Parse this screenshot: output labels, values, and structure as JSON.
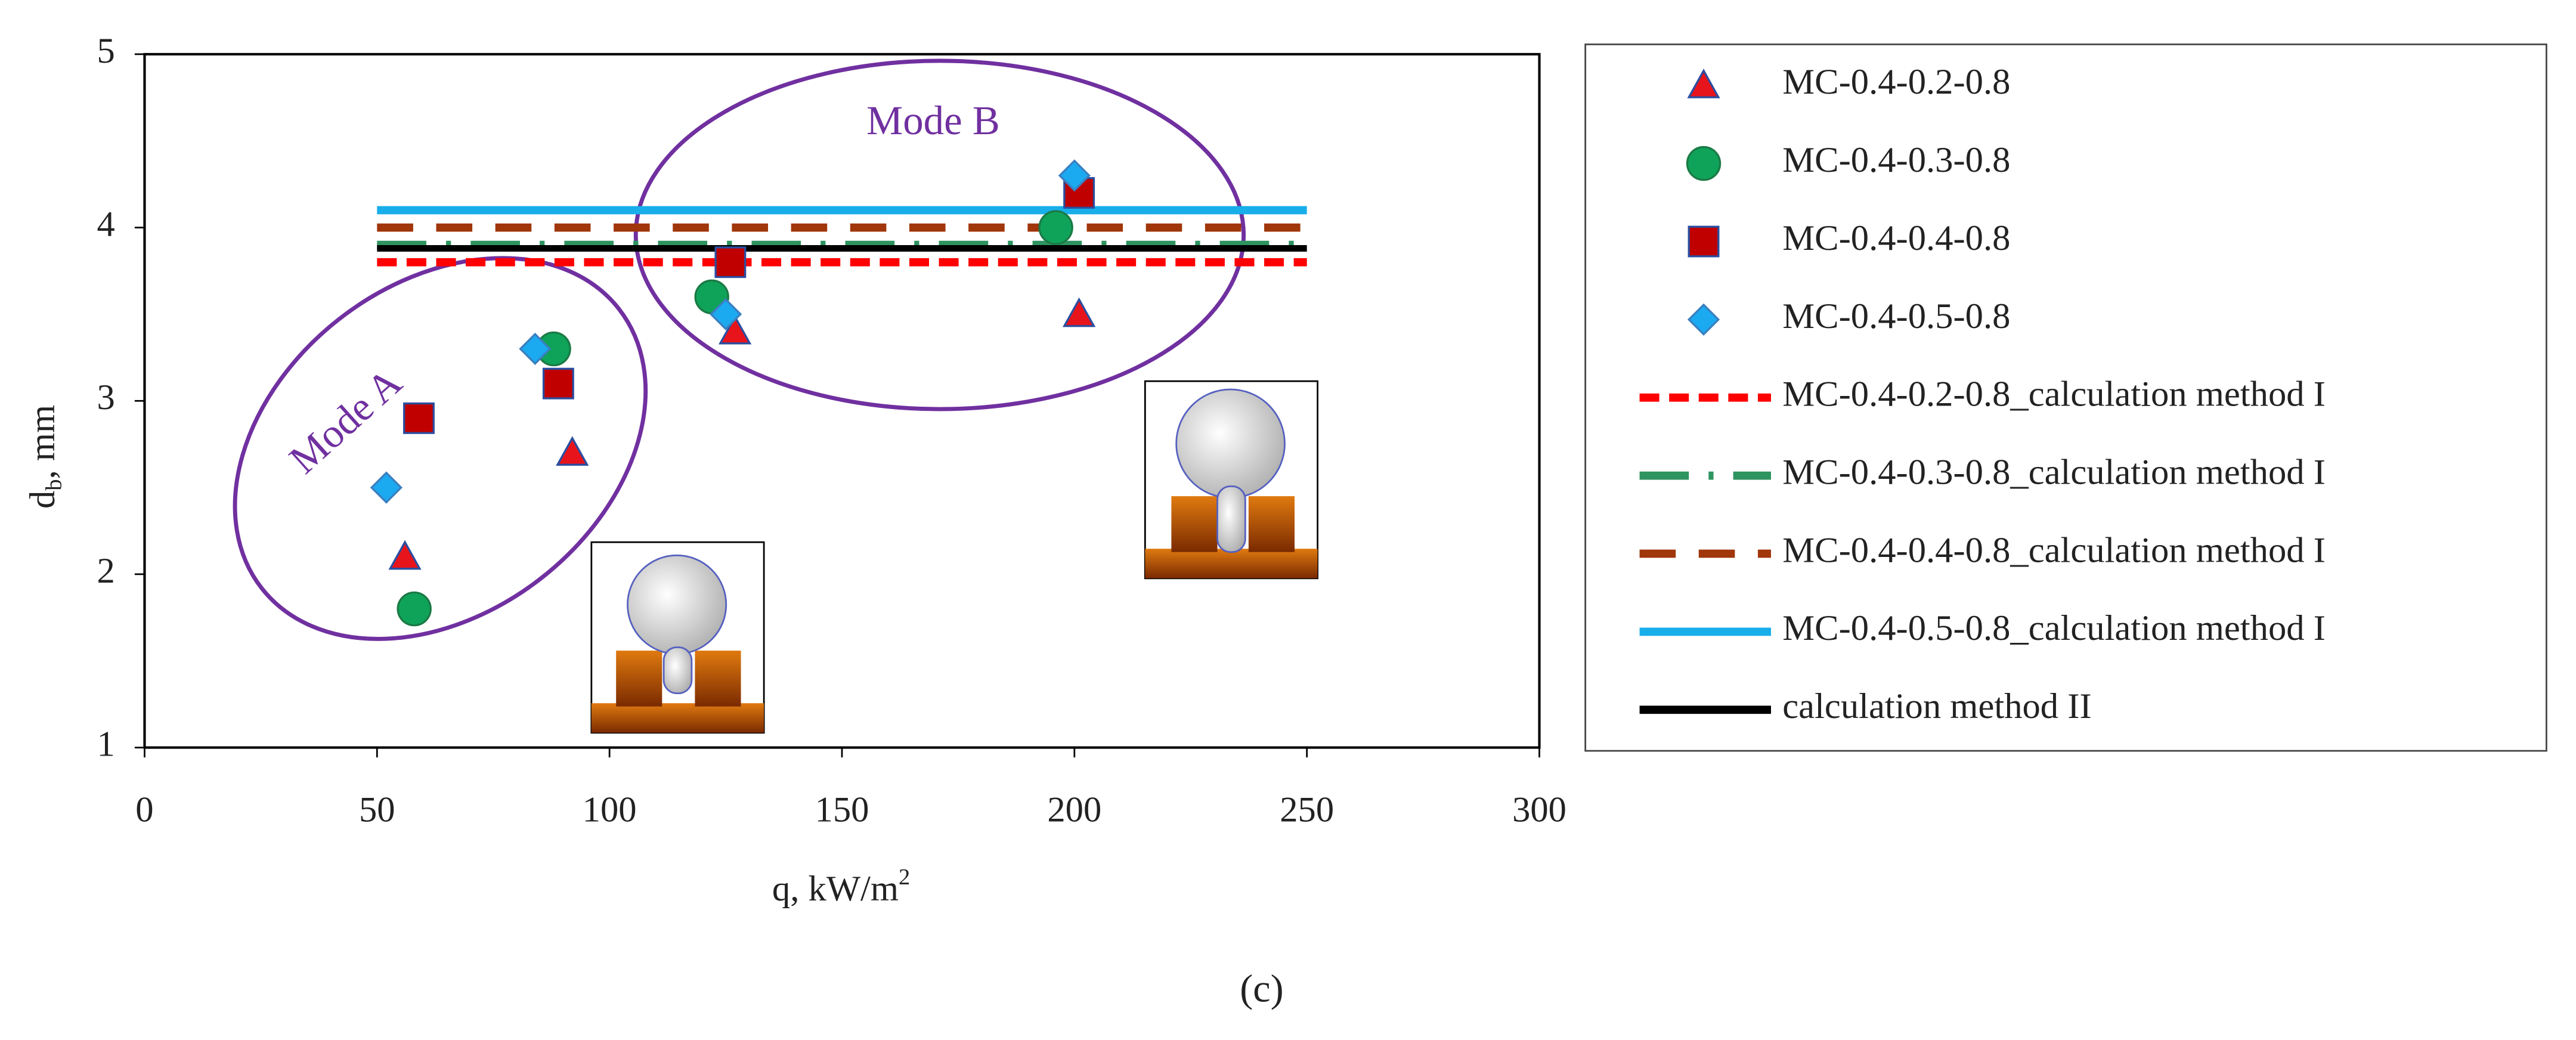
{
  "chart_data": {
    "type": "scatter",
    "xlabel": [
      "q, kW/m",
      "2"
    ],
    "ylabel": [
      "d",
      "b",
      ", mm"
    ],
    "annotations": [
      "Mode A",
      "Mode B"
    ],
    "caption": "(c)",
    "xlim": [
      0,
      300
    ],
    "xticks": [
      0,
      50,
      100,
      150,
      200,
      250,
      300
    ],
    "ylim": [
      1,
      5
    ],
    "yticks": [
      1,
      2,
      3,
      4,
      5
    ],
    "series": [
      {
        "name": "MC-0.4-0.2-0.8",
        "type": "scatter",
        "marker": "triangle",
        "color": "#e8141c",
        "x": [
          56,
          92,
          127,
          201
        ],
        "values": [
          2.1,
          2.7,
          3.4,
          3.5
        ]
      },
      {
        "name": "MC-0.4-0.3-0.8",
        "type": "scatter",
        "marker": "circle",
        "color": "#0fa35a",
        "x": [
          58,
          88,
          122,
          196
        ],
        "values": [
          1.8,
          3.3,
          3.6,
          4.0
        ]
      },
      {
        "name": "MC-0.4-0.4-0.8",
        "type": "scatter",
        "marker": "square",
        "color": "#c00000",
        "x": [
          59,
          89,
          126,
          201
        ],
        "values": [
          2.9,
          3.1,
          3.8,
          4.2
        ]
      },
      {
        "name": "MC-0.4-0.5-0.8",
        "type": "scatter",
        "marker": "diamond",
        "color": "#1ba9f0",
        "x": [
          52,
          84,
          125,
          200
        ],
        "values": [
          2.5,
          3.3,
          3.5,
          4.3
        ]
      },
      {
        "name": "MC-0.4-0.2-0.8_calculation method I",
        "type": "line",
        "dash": "12 6",
        "color": "#ff0000",
        "x": [
          50,
          250
        ],
        "values": [
          3.8,
          3.8
        ]
      },
      {
        "name": "MC-0.4-0.3-0.8_calculation method I",
        "type": "line",
        "dash": "30 12 3 12",
        "color": "#2e9460",
        "x": [
          50,
          250
        ],
        "values": [
          3.9,
          3.9
        ]
      },
      {
        "name": "MC-0.4-0.4-0.8_calculation method I",
        "type": "line",
        "dash": "22 14",
        "color": "#a0360a",
        "x": [
          50,
          250
        ],
        "values": [
          4.0,
          4.0
        ]
      },
      {
        "name": "MC-0.4-0.5-0.8_calculation method I",
        "type": "line",
        "dash": "none",
        "color": "#18aeea",
        "x": [
          50,
          250
        ],
        "values": [
          4.1,
          4.1
        ]
      },
      {
        "name": "calculation method II",
        "type": "line",
        "dash": "none",
        "color": "#000000",
        "x": [
          50,
          250
        ],
        "values": [
          3.88,
          3.88
        ]
      }
    ]
  }
}
